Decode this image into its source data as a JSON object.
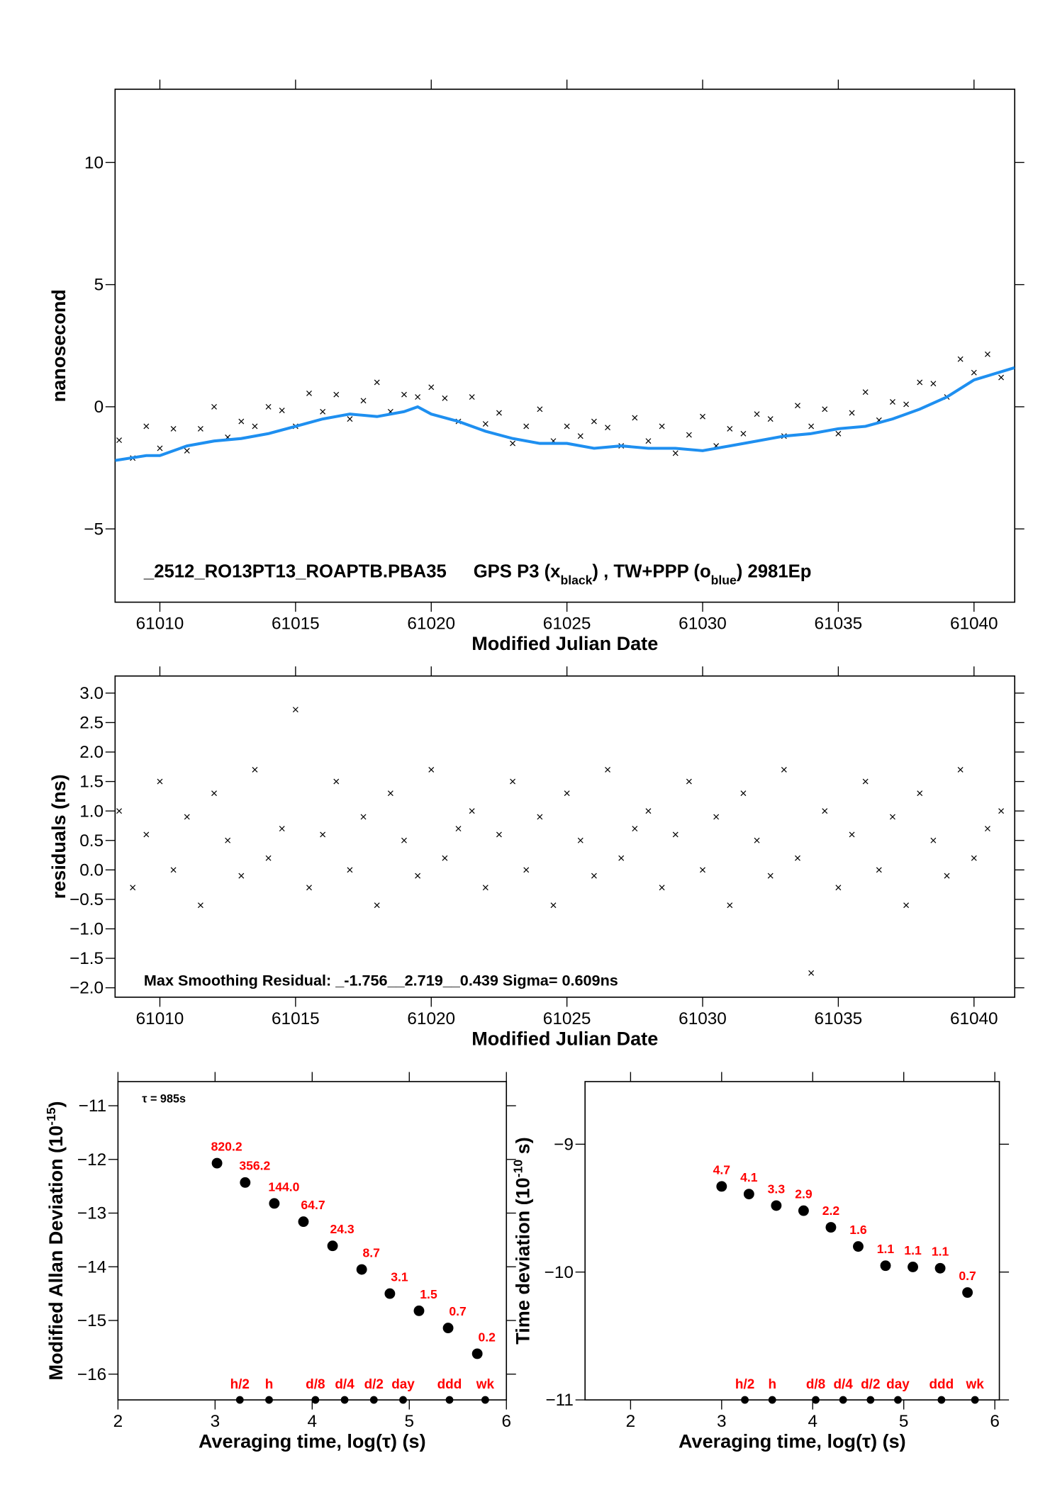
{
  "chart_data": [
    {
      "type": "scatter",
      "xlabel": "Modified Julian Date",
      "ylabel": [
        "nanosecond"
      ],
      "annotation": [
        "_2512_RO13PT13_ROAPTB.PBA35",
        "GPS P3 (x",
        "black",
        ") ,  TW+PPP (o",
        "blue",
        ")  2981Ep"
      ],
      "xlim": [
        61008.35,
        61041.5
      ],
      "ylim": [
        -8,
        13
      ],
      "xticks": [
        61010,
        61015,
        61020,
        61025,
        61030,
        61035,
        61040
      ],
      "yticks": [
        10,
        5,
        0,
        {
          "value": -5,
          "label": "−5"
        }
      ],
      "series": [
        {
          "type": "scatter",
          "marker": "x",
          "color": "#000000",
          "x": [
            61008.5,
            61009,
            61009.5,
            61010,
            61010.5,
            61011,
            61011.5,
            61012,
            61012.5,
            61013,
            61013.5,
            61014,
            61014.5,
            61015,
            61015.5,
            61016,
            61016.5,
            61017,
            61017.5,
            61018,
            61018.5,
            61019,
            61019.5,
            61020,
            61020.5,
            61021,
            61021.5,
            61022,
            61022.5,
            61023,
            61023.5,
            61024,
            61024.5,
            61025,
            61025.5,
            61026,
            61026.5,
            61027,
            61027.5,
            61028,
            61028.5,
            61029,
            61029.5,
            61030,
            61030.5,
            61031,
            61031.5,
            61032,
            61032.5,
            61033,
            61033.5,
            61034,
            61034.5,
            61035,
            61035.5,
            61036,
            61036.5,
            61037,
            61037.5,
            61038,
            61038.5,
            61039,
            61039.5,
            61040,
            61040.5,
            61041
          ],
          "values": [
            -1.37,
            -2.1,
            -0.8,
            -1.7,
            -0.9,
            -1.8,
            -0.9,
            0.0,
            -1.25,
            -0.6,
            -0.8,
            0.0,
            -0.15,
            -0.8,
            0.55,
            -0.2,
            0.5,
            -0.5,
            0.25,
            1.0,
            -0.2,
            0.5,
            0.4,
            0.8,
            0.35,
            -0.6,
            0.4,
            -0.7,
            -0.25,
            -1.5,
            -0.8,
            -0.1,
            -1.4,
            -0.8,
            -1.2,
            -0.6,
            -0.85,
            -1.6,
            -0.45,
            -1.4,
            -0.8,
            -1.9,
            -1.15,
            -0.4,
            -1.6,
            -0.9,
            -1.1,
            -0.3,
            -0.5,
            -1.2,
            0.05,
            -0.8,
            -0.1,
            -1.1,
            -0.25,
            0.6,
            -0.55,
            0.2,
            0.1,
            1.0,
            0.95,
            0.4,
            1.95,
            1.4,
            2.15,
            1.2
          ]
        },
        {
          "type": "line",
          "color": "#1e8ff0",
          "x": [
            61008.35,
            61009.5,
            61010,
            61011,
            61012,
            61013,
            61014,
            61015,
            61016,
            61017,
            61018,
            61019,
            61019.5,
            61020,
            61021,
            61022,
            61023,
            61024,
            61025,
            61026,
            61027,
            61028,
            61029,
            61030,
            61031,
            61032,
            61033,
            61034,
            61035,
            61036,
            61037,
            61038,
            61039,
            61040,
            61041.5
          ],
          "values": [
            -2.2,
            -2.0,
            -2.0,
            -1.6,
            -1.4,
            -1.3,
            -1.1,
            -0.8,
            -0.5,
            -0.3,
            -0.4,
            -0.2,
            0.0,
            -0.3,
            -0.6,
            -1.0,
            -1.3,
            -1.5,
            -1.5,
            -1.7,
            -1.6,
            -1.7,
            -1.7,
            -1.8,
            -1.6,
            -1.4,
            -1.2,
            -1.1,
            -0.9,
            -0.8,
            -0.5,
            -0.1,
            0.4,
            1.1,
            1.6
          ]
        }
      ]
    },
    {
      "type": "scatter",
      "xlabel": "Modified Julian Date",
      "ylabel": [
        "residuals (ns)"
      ],
      "annotation": [
        "Max Smoothing Residual: _-1.756__2.719__0.439  Sigma= 0.609ns"
      ],
      "xlim": [
        61008.35,
        61041.5
      ],
      "ylim": [
        -2.16,
        3.29
      ],
      "xticks": [
        61010,
        61015,
        61020,
        61025,
        61030,
        61035,
        61040
      ],
      "yticks": [
        {
          "value": 3,
          "label": "3.0"
        },
        2.5,
        {
          "value": 2,
          "label": "2.0"
        },
        1.5,
        {
          "value": 1,
          "label": "1.0"
        },
        0.5,
        {
          "value": 0,
          "label": "0.0"
        },
        {
          "value": -0.5,
          "label": "−0.5"
        },
        {
          "value": -1,
          "label": "−1.0"
        },
        {
          "value": -1.5,
          "label": "−1.5"
        },
        {
          "value": -2,
          "label": "−2.0"
        }
      ],
      "series": [
        {
          "type": "scatter",
          "marker": "x",
          "color": "#000000",
          "x": [
            61008.5,
            61009,
            61009.5,
            61010,
            61010.5,
            61011,
            61011.5,
            61012,
            61012.5,
            61013,
            61013.5,
            61014,
            61014.5,
            61015,
            61015.5,
            61016,
            61016.5,
            61017,
            61017.5,
            61018,
            61018.5,
            61019,
            61019.5,
            61020,
            61020.5,
            61021,
            61021.5,
            61022,
            61022.5,
            61023,
            61023.5,
            61024,
            61024.5,
            61025,
            61025.5,
            61026,
            61026.5,
            61027,
            61027.5,
            61028,
            61028.5,
            61029,
            61029.5,
            61030,
            61030.5,
            61031,
            61031.5,
            61032,
            61032.5,
            61033,
            61033.5,
            61034,
            61034.5,
            61035,
            61035.5,
            61036,
            61036.5,
            61037,
            61037.5,
            61038,
            61038.5,
            61039,
            61039.5,
            61040,
            61040.5,
            61041
          ],
          "values": [
            1.0,
            -0.3,
            0.6,
            1.5,
            0.0,
            0.9,
            -0.6,
            1.3,
            0.5,
            -0.1,
            1.7,
            0.2,
            0.7,
            2.72,
            -0.3,
            0.6,
            1.5,
            0.0,
            0.9,
            -0.6,
            1.3,
            0.5,
            -0.1,
            1.7,
            0.2,
            0.7,
            1.0,
            -0.3,
            0.6,
            1.5,
            0.0,
            0.9,
            -0.6,
            1.3,
            0.5,
            -0.1,
            1.7,
            0.2,
            0.7,
            1.0,
            -0.3,
            0.6,
            1.5,
            0.0,
            0.9,
            -0.6,
            1.3,
            0.5,
            -0.1,
            1.7,
            0.2,
            -1.75,
            1.0,
            -0.3,
            0.6,
            1.5,
            0.0,
            0.9,
            -0.6,
            1.3,
            0.5,
            -0.1,
            1.7,
            0.2,
            0.7,
            1.0
          ]
        }
      ]
    },
    {
      "type": "scatter",
      "xlabel": "Averaging time, log(τ) (s)",
      "ylabel": [
        "Modified Allan Deviation (10",
        "-15",
        ")"
      ],
      "annotation": [
        "τ = 985s"
      ],
      "xlim": [
        2,
        6
      ],
      "ylim": [
        -16.48,
        -10.55
      ],
      "xticks": [
        2,
        3,
        4,
        5,
        6
      ],
      "yticks": [
        {
          "value": -11,
          "label": "−11"
        },
        {
          "value": -12,
          "label": "−12"
        },
        {
          "value": -13,
          "label": "−13"
        },
        {
          "value": -14,
          "label": "−14"
        },
        {
          "value": -15,
          "label": "−15"
        },
        {
          "value": -16,
          "label": "−16"
        }
      ],
      "series": [
        {
          "type": "scatter",
          "marker": "dot",
          "color": "#000000",
          "label_color": "#ff0000",
          "x": [
            3.02,
            3.31,
            3.61,
            3.91,
            4.21,
            4.51,
            4.8,
            5.1,
            5.4,
            5.7
          ],
          "values": [
            -12.07,
            -12.43,
            -12.82,
            -13.16,
            -13.61,
            -14.05,
            -14.5,
            -14.82,
            -15.14,
            -15.62
          ],
          "point_labels": [
            "820.2",
            "356.2",
            "144.0",
            "64.7",
            "24.3",
            "8.7",
            "3.1",
            "1.5",
            "0.7",
            "0.2"
          ]
        }
      ],
      "markers": {
        "x": [
          3.255,
          3.556,
          4.033,
          4.334,
          4.635,
          4.936,
          5.414,
          5.782
        ],
        "labels": [
          "h/2",
          "h",
          "d/8",
          "d/4",
          "d/2",
          "day",
          "ddd",
          "wk"
        ]
      }
    },
    {
      "type": "scatter",
      "xlabel": "Averaging time, log(τ) (s)",
      "ylabel": [
        "Time deviation (10",
        "-10",
        " s)"
      ],
      "xlim": [
        1.5,
        6.05
      ],
      "ylim": [
        -11,
        -8.51
      ],
      "xticks": [
        2,
        3,
        4,
        5,
        6
      ],
      "yticks": [
        {
          "value": -9,
          "label": "−9"
        },
        {
          "value": -10,
          "label": "−10"
        },
        {
          "value": -11,
          "label": "−11"
        }
      ],
      "series": [
        {
          "type": "scatter",
          "marker": "dot",
          "color": "#000000",
          "label_color": "#ff0000",
          "x": [
            3.0,
            3.3,
            3.6,
            3.9,
            4.2,
            4.5,
            4.8,
            5.1,
            5.4,
            5.7
          ],
          "values": [
            -9.33,
            -9.39,
            -9.48,
            -9.52,
            -9.65,
            -9.8,
            -9.95,
            -9.96,
            -9.97,
            -10.16
          ],
          "point_labels": [
            "4.7",
            "4.1",
            "3.3",
            "2.9",
            "2.2",
            "1.6",
            "1.1",
            "1.1",
            "1.1",
            "0.7"
          ]
        }
      ],
      "markers": {
        "x": [
          3.255,
          3.556,
          4.033,
          4.334,
          4.635,
          4.936,
          5.414,
          5.782
        ],
        "labels": [
          "h/2",
          "h",
          "d/8",
          "d/4",
          "d/2",
          "day",
          "ddd",
          "wk"
        ]
      }
    }
  ]
}
